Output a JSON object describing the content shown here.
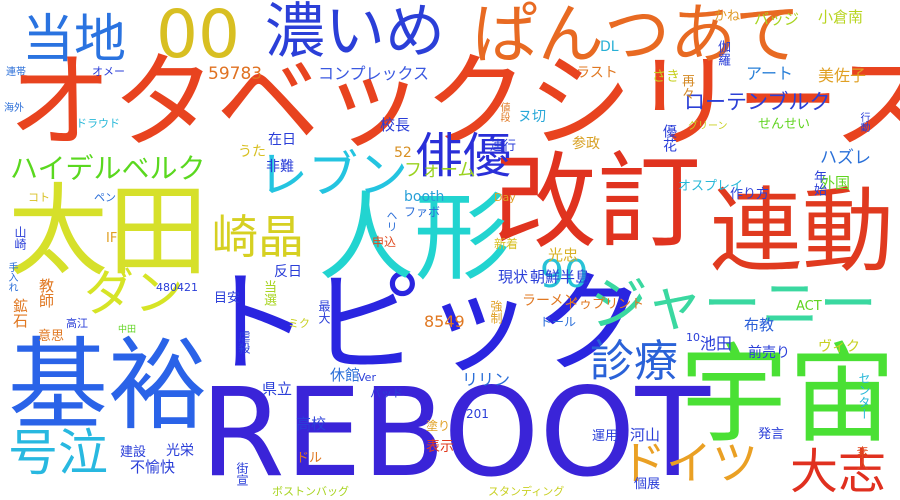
{
  "words": [
    {
      "text": "オタベックシリーズ",
      "color": "#e8431f"
    },
    {
      "text": "REBOOT",
      "color": "#3a24d8"
    },
    {
      "text": "トピック",
      "color": "#2a25e0"
    },
    {
      "text": "改訂",
      "color": "#e0331f"
    },
    {
      "text": "人形",
      "color": "#22d4d0"
    },
    {
      "text": "太田",
      "color": "#d6e02a"
    },
    {
      "text": "基裕",
      "color": "#2a63e8"
    },
    {
      "text": "宇宙",
      "color": "#4ae034"
    },
    {
      "text": "連動",
      "color": "#e03a1f"
    },
    {
      "text": "濃いめ",
      "color": "#2b3fd8"
    },
    {
      "text": "ぱんつあて",
      "color": "#e86a22"
    },
    {
      "text": "00",
      "color": "#d8bf22"
    },
    {
      "text": "当地",
      "color": "#2a73e0"
    },
    {
      "text": "号泣",
      "color": "#28b8e0"
    },
    {
      "text": "ジャーニー",
      "color": "#3ad8a0"
    },
    {
      "text": "大志",
      "color": "#e0301f"
    },
    {
      "text": "ドイツ",
      "color": "#eaa024"
    },
    {
      "text": "レブン",
      "color": "#24c4e0"
    },
    {
      "text": "俳優",
      "color": "#2a2fd8"
    },
    {
      "text": "崎晶",
      "color": "#d6d022"
    },
    {
      "text": "ダン",
      "color": "#d6e426"
    },
    {
      "text": "診療",
      "color": "#2a62d8"
    },
    {
      "text": "ハイデルベルク",
      "color": "#5ad81f"
    },
    {
      "text": "90",
      "color": "#28c2d6"
    },
    {
      "text": "ローテンブルク",
      "color": "#2c40d6"
    },
    {
      "text": "コンプレックス",
      "color": "#3a58e0"
    },
    {
      "text": "フォーム",
      "color": "#9ad21f"
    },
    {
      "text": "59783",
      "color": "#e07222"
    },
    {
      "text": "アート",
      "color": "#2a80d8"
    },
    {
      "text": "美佐子",
      "color": "#e0a024"
    },
    {
      "text": "小倉南",
      "color": "#b8d41f"
    },
    {
      "text": "かね",
      "color": "#e09a24"
    },
    {
      "text": "バッジ",
      "color": "#a8d420"
    },
    {
      "text": "DL",
      "color": "#28b0d6"
    },
    {
      "text": "ラスト",
      "color": "#e07822"
    },
    {
      "text": "再々",
      "color": "#d48822"
    },
    {
      "text": "さき",
      "color": "#c8d022"
    },
    {
      "text": "ヌ切",
      "color": "#28a8d8"
    },
    {
      "text": "参政",
      "color": "#d8a024"
    },
    {
      "text": "ハズレ",
      "color": "#2a70d8"
    },
    {
      "text": "外国",
      "color": "#60d420"
    },
    {
      "text": "年始",
      "color": "#2a3ed8"
    },
    {
      "text": "作り方",
      "color": "#2a3ed8"
    },
    {
      "text": "オスプレイ",
      "color": "#28b8d8"
    },
    {
      "text": "光忠",
      "color": "#d8b024"
    },
    {
      "text": "朝鮮半島",
      "color": "#2a3ed8"
    },
    {
      "text": "現状",
      "color": "#2a3ed8"
    },
    {
      "text": "ラーメン",
      "color": "#e07822"
    },
    {
      "text": "ドゥプリント",
      "color": "#e07822"
    },
    {
      "text": "池田",
      "color": "#2a3ed8"
    },
    {
      "text": "布教",
      "color": "#2a5ed8"
    },
    {
      "text": "前売り",
      "color": "#2a3ed8"
    },
    {
      "text": "ヴィク",
      "color": "#c8d022"
    },
    {
      "text": "8549",
      "color": "#e07822"
    },
    {
      "text": "ドール",
      "color": "#2a6ed8"
    },
    {
      "text": "リリン",
      "color": "#2a6ed8"
    },
    {
      "text": "休館",
      "color": "#2a6ed8"
    },
    {
      "text": "県立",
      "color": "#2a3ed8"
    },
    {
      "text": "高校",
      "color": "#2a3ed8"
    },
    {
      "text": "光栄",
      "color": "#2a3ed8"
    },
    {
      "text": "建設",
      "color": "#2a3ed8"
    },
    {
      "text": "不愉快",
      "color": "#2a3ed8"
    },
    {
      "text": "ボストンバッグ",
      "color": "#a8d420"
    },
    {
      "text": "スタンディング",
      "color": "#c8d022"
    },
    {
      "text": "個展",
      "color": "#2a3ed8"
    },
    {
      "text": "運用",
      "color": "#2a3ed8"
    },
    {
      "text": "河山",
      "color": "#2a3ed8"
    },
    {
      "text": "発言",
      "color": "#2a3ed8"
    },
    {
      "text": "表示",
      "color": "#e03a1f"
    },
    {
      "text": "在日",
      "color": "#2a3ed8"
    },
    {
      "text": "うた",
      "color": "#d8c024"
    },
    {
      "text": "校長",
      "color": "#2a3ed8"
    },
    {
      "text": "連行",
      "color": "#2a3ed8"
    },
    {
      "text": "非難",
      "color": "#2a3ed8"
    },
    {
      "text": "52",
      "color": "#d89024"
    },
    {
      "text": "booth",
      "color": "#28a0d8"
    },
    {
      "text": "ファボ",
      "color": "#2a6ed8"
    },
    {
      "text": "Day",
      "color": "#e0a024"
    },
    {
      "text": "新着",
      "color": "#d8c024"
    },
    {
      "text": "申込",
      "color": "#e04a1f"
    },
    {
      "text": "反日",
      "color": "#2a3ed8"
    },
    {
      "text": "480421",
      "color": "#2a3ed8"
    },
    {
      "text": "目安",
      "color": "#2a3ed8"
    },
    {
      "text": "当選",
      "color": "#a8d420"
    },
    {
      "text": "最大",
      "color": "#2a3ed8"
    },
    {
      "text": "ミク",
      "color": "#c8d022"
    },
    {
      "text": "虐殺",
      "color": "#2a3ed8"
    },
    {
      "text": "パッド",
      "color": "#2a3ed8"
    },
    {
      "text": "Ver",
      "color": "#2a3ed8"
    },
    {
      "text": "201",
      "color": "#2a3ed8"
    },
    {
      "text": "10",
      "color": "#2a3ed8"
    },
    {
      "text": "ACT",
      "color": "#60d420"
    },
    {
      "text": "センター",
      "color": "#28b8d8"
    },
    {
      "text": "ドル",
      "color": "#e07822"
    },
    {
      "text": "塗り",
      "color": "#e0a024"
    },
    {
      "text": "街宣",
      "color": "#2a3ed8"
    },
    {
      "text": "素人",
      "color": "#e04a1f"
    },
    {
      "text": "教師",
      "color": "#e07822"
    },
    {
      "text": "鉱石",
      "color": "#e07822"
    },
    {
      "text": "意思",
      "color": "#e07822"
    },
    {
      "text": "高江",
      "color": "#2a3ed8"
    },
    {
      "text": "中田",
      "color": "#60d420"
    },
    {
      "text": "IF",
      "color": "#e0a024"
    },
    {
      "text": "山崎",
      "color": "#2a3ed8"
    },
    {
      "text": "コト",
      "color": "#d8c024"
    },
    {
      "text": "ペン",
      "color": "#2a6ed8"
    },
    {
      "text": "ヘリ",
      "color": "#2a6ed8"
    },
    {
      "text": "手入れ",
      "color": "#2a6ed8"
    },
    {
      "text": "連帯",
      "color": "#2a6ed8"
    },
    {
      "text": "オメー",
      "color": "#2a3ed8"
    },
    {
      "text": "海外",
      "color": "#2a6ed8"
    },
    {
      "text": "ドラウド",
      "color": "#28b8d8"
    },
    {
      "text": "値段",
      "color": "#e07822"
    },
    {
      "text": "優花",
      "color": "#2a3ed8"
    },
    {
      "text": "グリーン",
      "color": "#c8d022"
    },
    {
      "text": "行動",
      "color": "#2a3ed8"
    },
    {
      "text": "せんせい",
      "color": "#60d420"
    },
    {
      "text": "強制",
      "color": "#e0a024"
    },
    {
      "text": "伽羅",
      "color": "#2a3ed8"
    }
  ]
}
